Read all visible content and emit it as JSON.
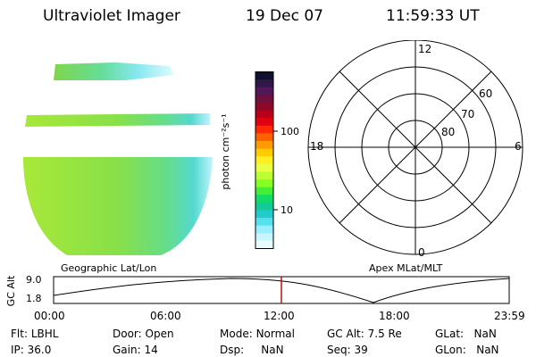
{
  "header": {
    "instrument": "Ultraviolet Imager",
    "date": "19 Dec 07",
    "time": "11:59:33 UT"
  },
  "colorbar": {
    "unit_label": "photon cm⁻²s⁻¹",
    "tick_labels": [
      "100",
      "10"
    ],
    "colors": [
      "#101030",
      "#301848",
      "#50185a",
      "#701040",
      "#900828",
      "#b80018",
      "#e00010",
      "#ff2800",
      "#ff6000",
      "#ff9a00",
      "#ffcc00",
      "#ffee22",
      "#e8ff44",
      "#bbff33",
      "#88ff22",
      "#44ee33",
      "#11dd66",
      "#11cc99",
      "#22cccc",
      "#55e0ee",
      "#99eeff",
      "#c8f6ff",
      "#e8fcff"
    ]
  },
  "panels": {
    "left_label": "Geographic Lat/Lon",
    "right_label": "Apex MLat/MLT"
  },
  "polar": {
    "mlt_labels": [
      "12",
      "18",
      "6",
      "0"
    ],
    "mlat_labels": [
      "60",
      "70",
      "80"
    ]
  },
  "timeline": {
    "axis_label": "GC Alt",
    "y_ticks": [
      "9.0",
      "1.8"
    ],
    "x_ticks": [
      "00:00",
      "06:00",
      "12:00",
      "18:00",
      "23:59"
    ],
    "current_marker_time": "11:59:33"
  },
  "info": [
    {
      "label": "Flt:",
      "value": "LBHL"
    },
    {
      "label": "Door:",
      "value": "Open"
    },
    {
      "label": "Mode:",
      "value": "Normal"
    },
    {
      "label": "GC Alt:",
      "value": "7.5 Re"
    },
    {
      "label": "GLat:",
      "value": "NaN"
    },
    {
      "label": "IP:",
      "value": "36.0"
    },
    {
      "label": "Gain:",
      "value": "14"
    },
    {
      "label": "Dsp:",
      "value": "NaN"
    },
    {
      "label": "Seq:",
      "value": "39"
    },
    {
      "label": "GLon:",
      "value": "NaN"
    }
  ]
}
